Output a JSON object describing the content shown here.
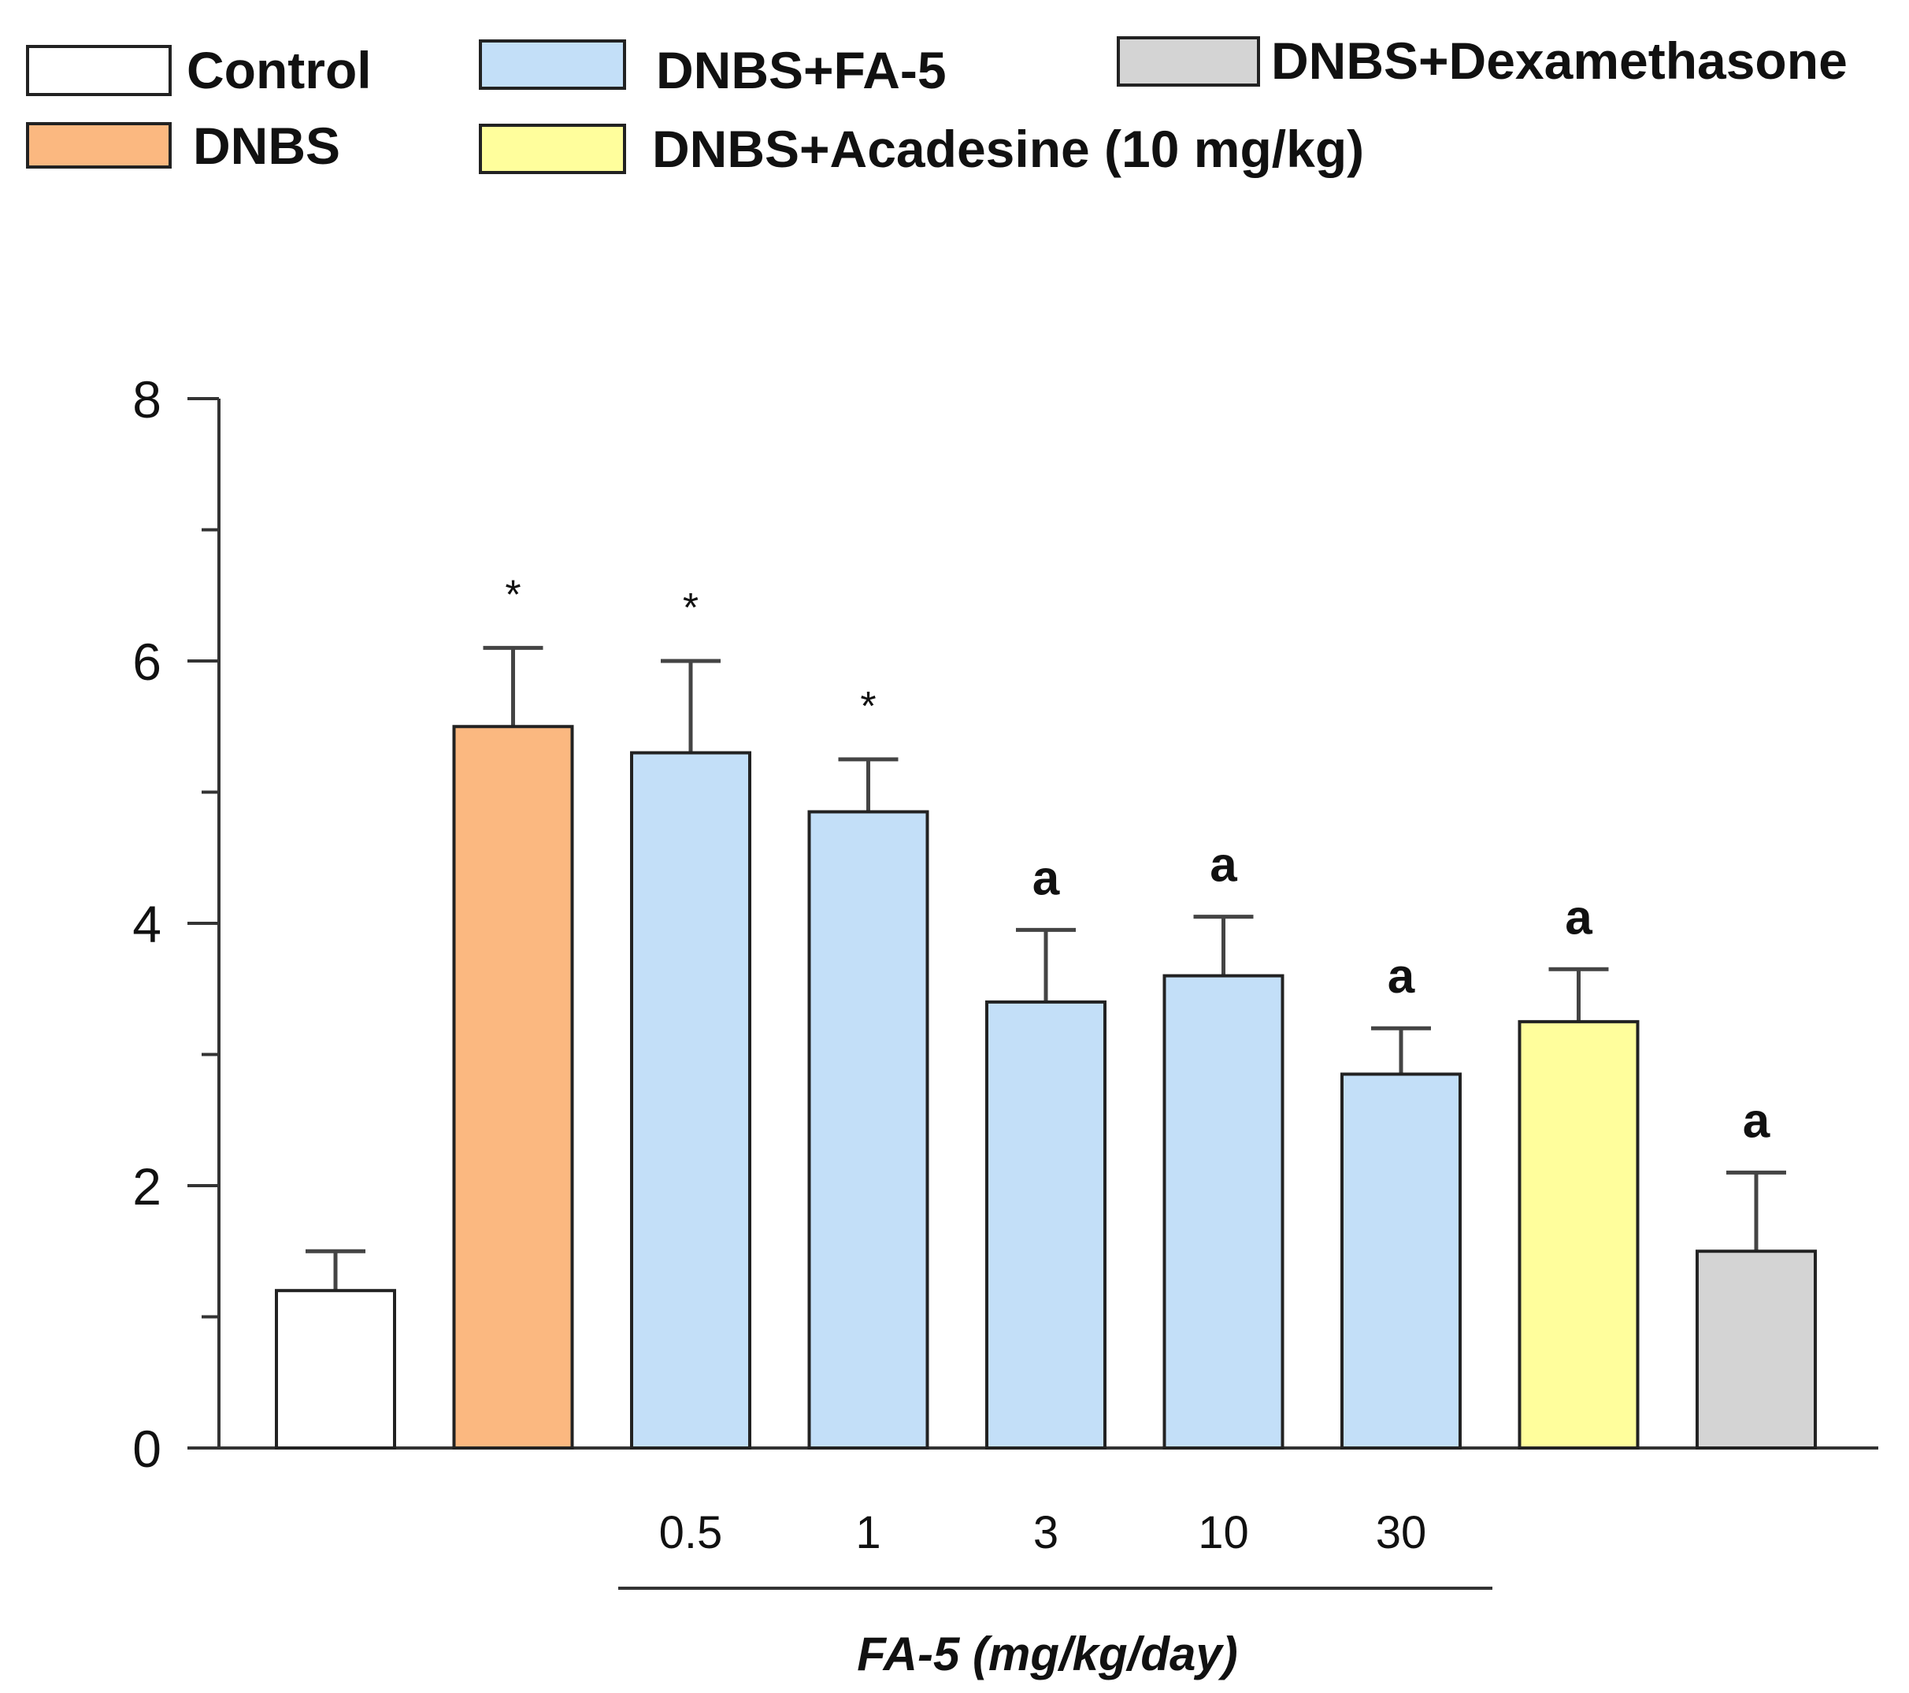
{
  "chart_data": {
    "type": "bar",
    "title": "",
    "xlabel": "FA-5 (mg/kg/day)",
    "ylabel": "",
    "ylim": [
      0,
      8
    ],
    "y_ticks": [
      "0",
      "2",
      "4",
      "6",
      "8"
    ],
    "y_tick_values": [
      0,
      2,
      4,
      6,
      8
    ],
    "minor_ticks": [
      1,
      3,
      5,
      7
    ],
    "grid": false,
    "legend_position": "top",
    "legend": [
      {
        "label": "Control",
        "color": "#ffffff"
      },
      {
        "label": "DNBS",
        "color": "#fbb880"
      },
      {
        "label": "DNBS+FA-5",
        "color": "#c3dff8"
      },
      {
        "label": "DNBS+Acadesine (10 mg/kg)",
        "color": "#fffe9c"
      },
      {
        "label": "DNBS+Dexamethasone",
        "color": "#d4d4d4"
      }
    ],
    "bars": [
      {
        "group": "Control",
        "dose": "",
        "value": 1.2,
        "error": 0.3,
        "annotation": "",
        "color": "#ffffff"
      },
      {
        "group": "DNBS",
        "dose": "",
        "value": 5.5,
        "error": 0.6,
        "annotation": "*",
        "color": "#fbb880"
      },
      {
        "group": "DNBS+FA-5",
        "dose": "0.5",
        "value": 5.3,
        "error": 0.7,
        "annotation": "*",
        "color": "#c3dff8"
      },
      {
        "group": "DNBS+FA-5",
        "dose": "1",
        "value": 4.85,
        "error": 0.4,
        "annotation": "*",
        "color": "#c3dff8"
      },
      {
        "group": "DNBS+FA-5",
        "dose": "3",
        "value": 3.4,
        "error": 0.55,
        "annotation": "a",
        "color": "#c3dff8"
      },
      {
        "group": "DNBS+FA-5",
        "dose": "10",
        "value": 3.6,
        "error": 0.45,
        "annotation": "a",
        "color": "#c3dff8"
      },
      {
        "group": "DNBS+FA-5",
        "dose": "30",
        "value": 2.85,
        "error": 0.35,
        "annotation": "a",
        "color": "#c3dff8"
      },
      {
        "group": "DNBS+Acadesine (10 mg/kg)",
        "dose": "",
        "value": 3.25,
        "error": 0.4,
        "annotation": "a",
        "color": "#fffe9c"
      },
      {
        "group": "DNBS+Dexamethasone",
        "dose": "",
        "value": 1.5,
        "error": 0.6,
        "annotation": "a",
        "color": "#d4d4d4"
      }
    ]
  }
}
